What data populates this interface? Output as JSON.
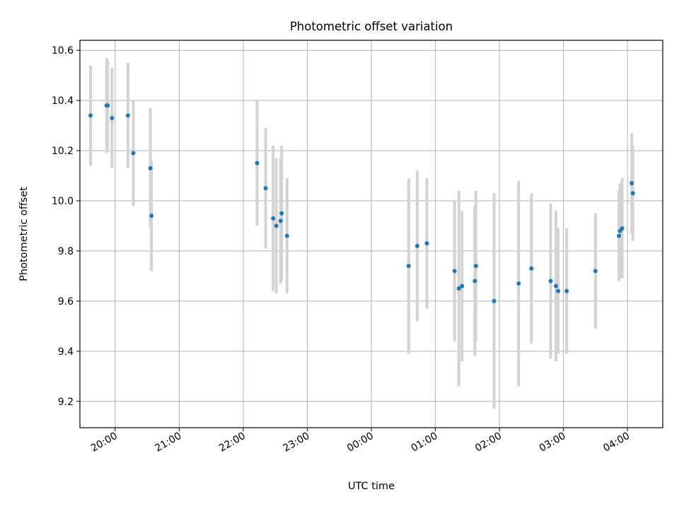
{
  "chart_data": {
    "type": "scatter",
    "title": "Photometric offset variation",
    "xlabel": "UTC time",
    "ylabel": "Photometric offset",
    "xlim": [
      "19:27",
      "04:33"
    ],
    "ylim": [
      9.095,
      10.64
    ],
    "grid": true,
    "xticks": [
      "20:00",
      "21:00",
      "22:00",
      "23:00",
      "00:00",
      "01:00",
      "02:00",
      "03:00",
      "04:00"
    ],
    "yticks": [
      "9.2",
      "9.4",
      "9.6",
      "9.8",
      "10.0",
      "10.2",
      "10.4",
      "10.6"
    ],
    "colors": {
      "points": "#1f77b4",
      "errorbars": "#d3d3d3",
      "grid": "#b0b0b0"
    },
    "points": [
      {
        "t": "19:37",
        "y": 10.34,
        "err": 0.2
      },
      {
        "t": "19:52",
        "y": 10.38,
        "err": 0.19
      },
      {
        "t": "19:53",
        "y": 10.38,
        "err": 0.18
      },
      {
        "t": "19:57",
        "y": 10.33,
        "err": 0.2
      },
      {
        "t": "20:12",
        "y": 10.34,
        "err": 0.21
      },
      {
        "t": "20:17",
        "y": 10.19,
        "err": 0.21
      },
      {
        "t": "20:33",
        "y": 10.13,
        "err": 0.24
      },
      {
        "t": "20:34",
        "y": 9.94,
        "err": 0.22
      },
      {
        "t": "22:13",
        "y": 10.15,
        "err": 0.25
      },
      {
        "t": "22:21",
        "y": 10.05,
        "err": 0.24
      },
      {
        "t": "22:28",
        "y": 9.93,
        "err": 0.29
      },
      {
        "t": "22:31",
        "y": 9.9,
        "err": 0.27
      },
      {
        "t": "22:36",
        "y": 9.95,
        "err": 0.27
      },
      {
        "t": "22:35",
        "y": 9.92,
        "err": 0.25
      },
      {
        "t": "22:41",
        "y": 9.86,
        "err": 0.23
      },
      {
        "t": "00:35",
        "y": 9.74,
        "err": 0.35
      },
      {
        "t": "00:43",
        "y": 9.82,
        "err": 0.3
      },
      {
        "t": "00:52",
        "y": 9.83,
        "err": 0.26
      },
      {
        "t": "01:18",
        "y": 9.72,
        "err": 0.28
      },
      {
        "t": "01:22",
        "y": 9.65,
        "err": 0.39
      },
      {
        "t": "01:25",
        "y": 9.66,
        "err": 0.3
      },
      {
        "t": "01:37",
        "y": 9.68,
        "err": 0.3
      },
      {
        "t": "01:38",
        "y": 9.74,
        "err": 0.3
      },
      {
        "t": "01:55",
        "y": 9.6,
        "err": 0.43
      },
      {
        "t": "02:18",
        "y": 9.67,
        "err": 0.41
      },
      {
        "t": "02:30",
        "y": 9.73,
        "err": 0.3
      },
      {
        "t": "02:48",
        "y": 9.68,
        "err": 0.31
      },
      {
        "t": "02:53",
        "y": 9.66,
        "err": 0.3
      },
      {
        "t": "02:55",
        "y": 9.64,
        "err": 0.25
      },
      {
        "t": "03:03",
        "y": 9.64,
        "err": 0.25
      },
      {
        "t": "03:30",
        "y": 9.72,
        "err": 0.23
      },
      {
        "t": "03:52",
        "y": 9.86,
        "err": 0.18
      },
      {
        "t": "03:53",
        "y": 9.88,
        "err": 0.19
      },
      {
        "t": "03:55",
        "y": 9.89,
        "err": 0.2
      },
      {
        "t": "04:04",
        "y": 10.07,
        "err": 0.2
      },
      {
        "t": "04:05",
        "y": 10.03,
        "err": 0.19
      }
    ]
  }
}
